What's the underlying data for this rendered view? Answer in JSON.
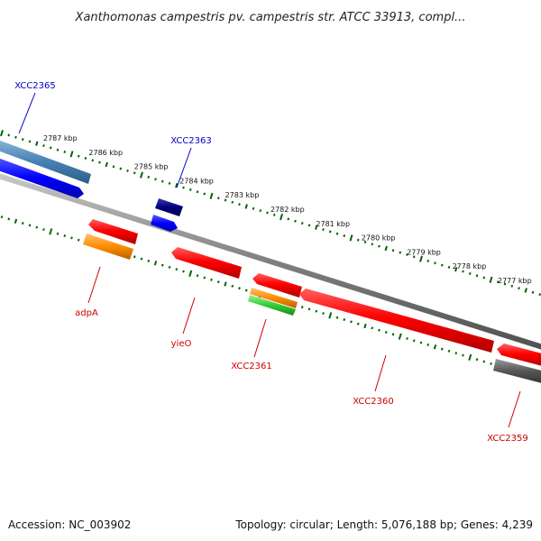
{
  "title": "Xanthomonas campestris pv. campestris str. ATCC 33913, compl...",
  "footer": {
    "accession": "Accession: NC_003902",
    "summary": "Topology: circular; Length: 5,076,188 bp; Genes: 4,239"
  },
  "ruler": {
    "unit": "kbp",
    "ticks": [
      {
        "kbp": 2787,
        "label": "2787 kbp"
      },
      {
        "kbp": 2786,
        "label": "2786 kbp"
      },
      {
        "kbp": 2785,
        "label": "2785 kbp"
      },
      {
        "kbp": 2784,
        "label": "2784 kbp"
      },
      {
        "kbp": 2783,
        "label": "2783 kbp"
      },
      {
        "kbp": 2782,
        "label": "2782 kbp"
      },
      {
        "kbp": 2781,
        "label": "2781 kbp"
      },
      {
        "kbp": 2780,
        "label": "2780 kbp"
      },
      {
        "kbp": 2779,
        "label": "2779 kbp"
      },
      {
        "kbp": 2778,
        "label": "2778 kbp"
      },
      {
        "kbp": 2777,
        "label": "2777 kbp"
      }
    ]
  },
  "genes": [
    {
      "name": "XCC2365",
      "strand": "forward"
    },
    {
      "name": "XCC2363",
      "strand": "forward"
    },
    {
      "name": "adpA",
      "strand": "reverse"
    },
    {
      "name": "yieO",
      "strand": "reverse"
    },
    {
      "name": "XCC2361",
      "strand": "reverse"
    },
    {
      "name": "XCC2360",
      "strand": "reverse"
    },
    {
      "name": "XCC2359",
      "strand": "reverse"
    }
  ],
  "colors": {
    "forward_label": "#0000cc",
    "reverse_label": "#cc0000",
    "cds_forward": "#0000ff",
    "gene_forward": "#4682b4",
    "gene_forward_small": "#000080",
    "cds_reverse": "#ff0000",
    "gene_orange": "#ff8c00",
    "gene_green": "#32cd32",
    "gene_gray": "#555555",
    "backbone": "#808080",
    "tick": "#006400"
  }
}
